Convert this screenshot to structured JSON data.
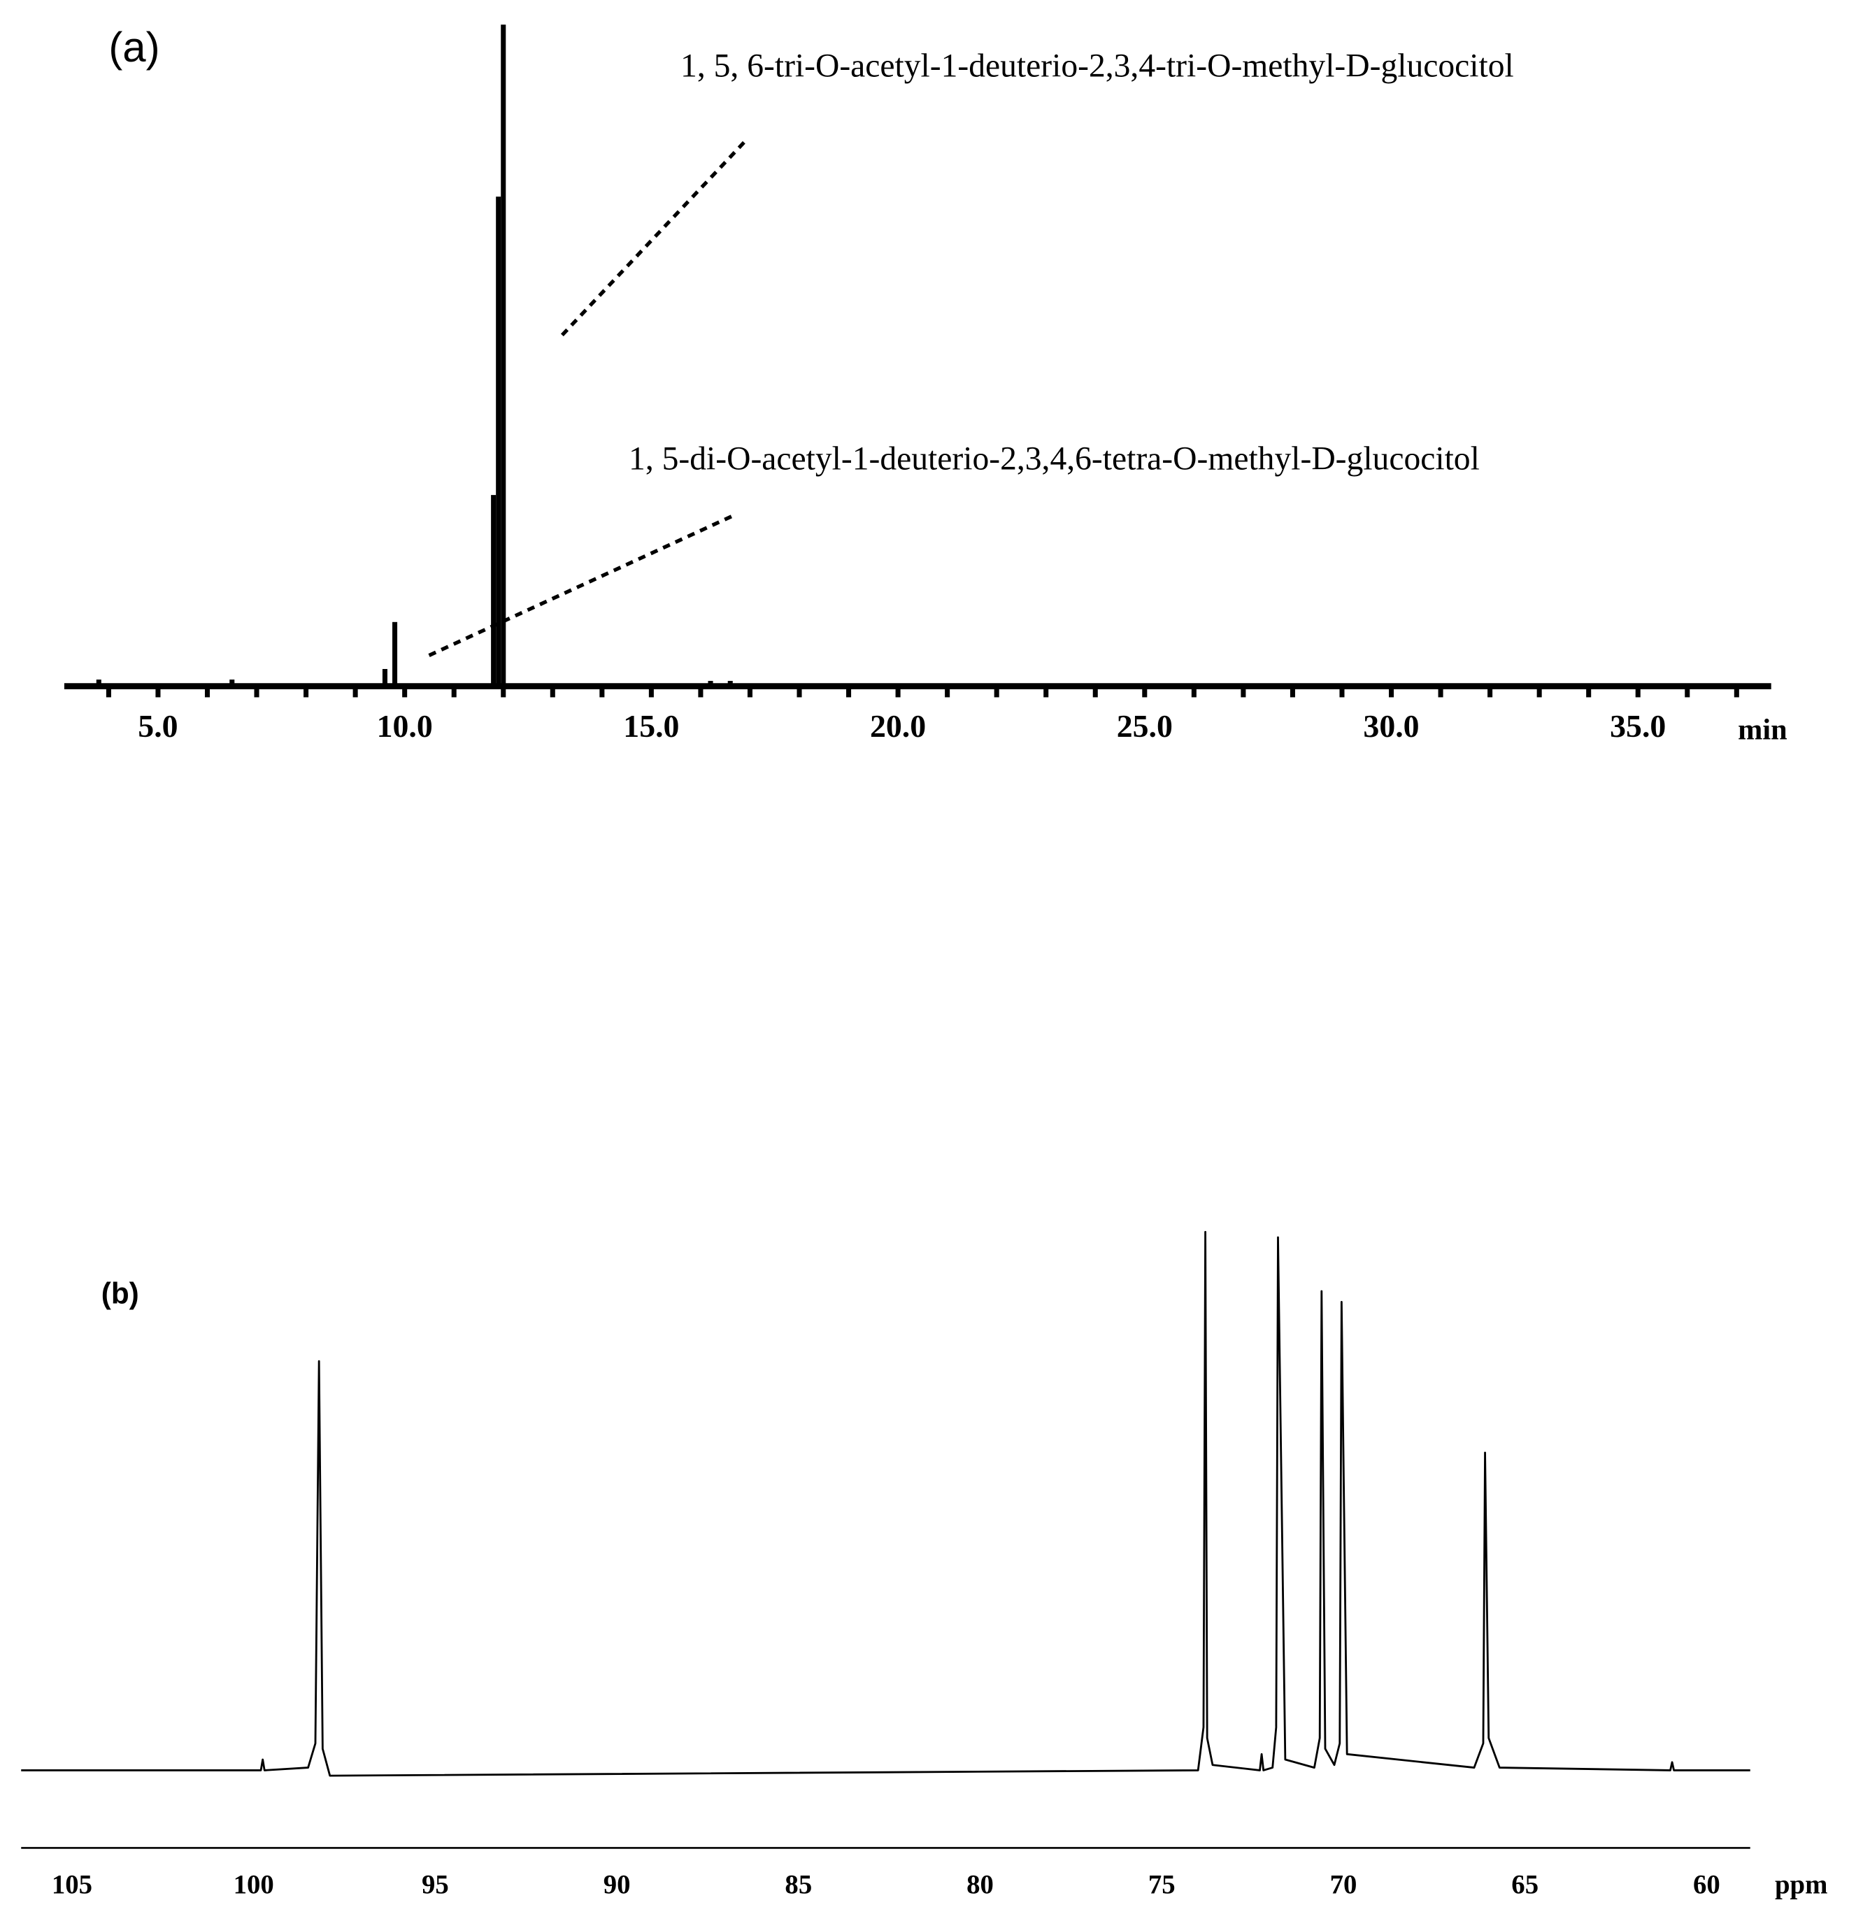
{
  "chart_data": [
    {
      "type": "bar",
      "panel_label": "(a)",
      "xlabel": "min",
      "annotations": [
        "1, 5, 6-tri-O-acetyl-1-deuterio-2,3,4-tri-O-methyl-D-glucocitol",
        "1, 5-di-O-acetyl-1-deuterio-2,3,4,6-tetra-O-methyl-D-glucocitol"
      ],
      "x": [
        3.8,
        6.5,
        9.6,
        9.8,
        11.8,
        11.9,
        12.0,
        16.2,
        16.6
      ],
      "values": [
        1,
        1,
        2.6,
        9.7,
        28.9,
        74,
        100,
        0.8,
        0.8
      ],
      "color": "#000000",
      "xlim": [
        3.1,
        37.7
      ],
      "ylim": [
        0,
        100
      ],
      "xticks": [
        {
          "value": 5,
          "label": "5.0"
        },
        {
          "value": 10,
          "label": "10.0"
        },
        {
          "value": 15,
          "label": "15.0"
        },
        {
          "value": 20,
          "label": "20.0"
        },
        {
          "value": 25,
          "label": "25.0"
        },
        {
          "value": 30,
          "label": "30.0"
        },
        {
          "value": 35,
          "label": "35.0"
        }
      ],
      "xticks_minor": [
        4,
        6,
        7,
        8,
        9,
        11,
        12,
        13,
        14,
        16,
        17,
        18,
        19,
        21,
        22,
        23,
        24,
        26,
        27,
        28,
        29,
        31,
        32,
        33,
        34,
        36,
        37
      ]
    },
    {
      "type": "line",
      "panel_label": "(b)",
      "xlabel": "ppm",
      "x": [
        106.4,
        99.8,
        99.75,
        99.7,
        98.5,
        98.3,
        98.2,
        98.1,
        97.9,
        74.0,
        73.85,
        73.8,
        73.75,
        73.6,
        72.3,
        72.25,
        72.2,
        71.95,
        71.85,
        71.8,
        71.6,
        70.8,
        70.65,
        70.6,
        70.5,
        70.25,
        70.1,
        70.05,
        69.9,
        66.4,
        66.15,
        66.1,
        66.0,
        65.7,
        61.0,
        60.95,
        60.9,
        58.8
      ],
      "values": [
        0,
        0,
        2,
        0,
        0.5,
        5,
        76,
        4,
        -1,
        0,
        8,
        100,
        6,
        1,
        0,
        3,
        0,
        0.5,
        8,
        99,
        2,
        0.5,
        6,
        89,
        4,
        1,
        5,
        87,
        3,
        0.5,
        5,
        59,
        6,
        0.5,
        0,
        1.5,
        0,
        0
      ],
      "color": "#000000",
      "xlim": [
        106.4,
        58.8
      ],
      "ylim": [
        0,
        100
      ],
      "xticks": [
        105,
        100,
        95,
        90,
        85,
        80,
        75,
        70,
        65,
        60
      ]
    }
  ]
}
